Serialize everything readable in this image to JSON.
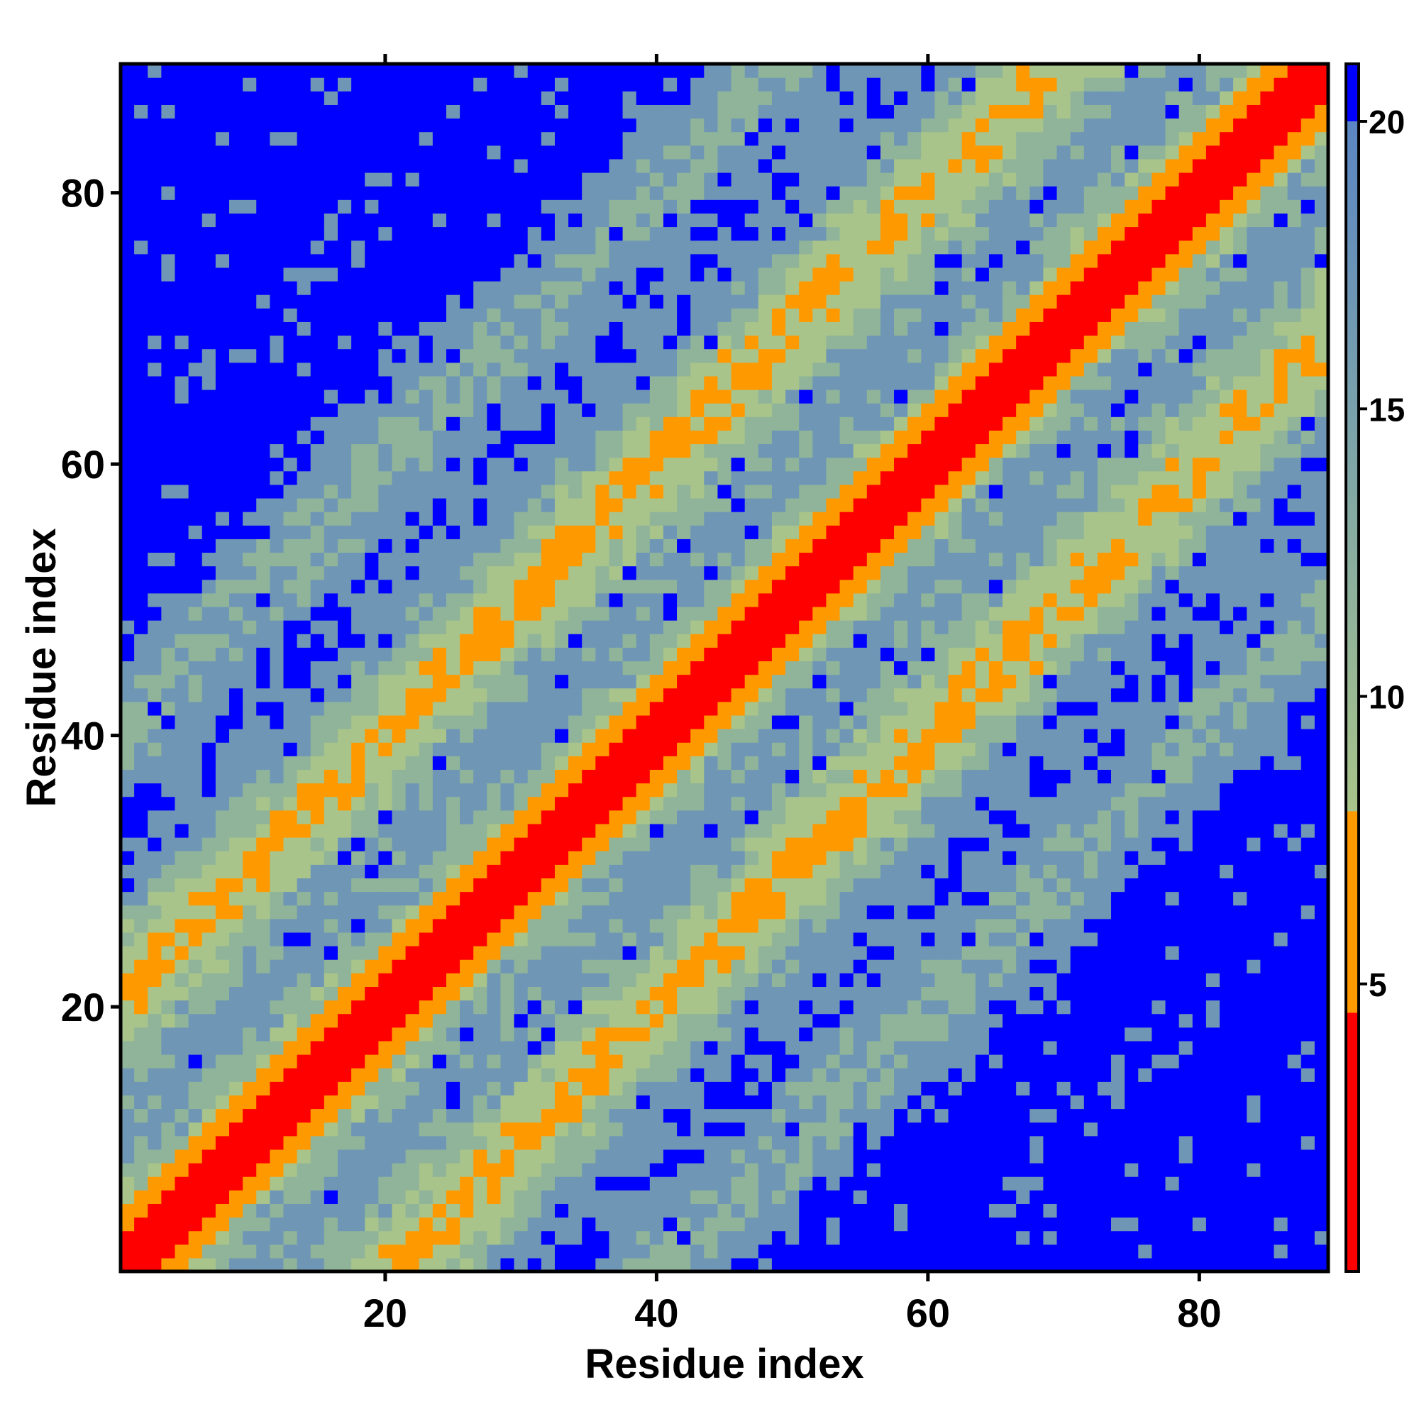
{
  "chart_data": {
    "type": "heatmap",
    "title": "",
    "xlabel": "Residue index",
    "ylabel": "Residue index",
    "n_residues": 89,
    "x_range": [
      1,
      89
    ],
    "y_range": [
      1,
      89
    ],
    "x_ticks": [
      20,
      40,
      60,
      80
    ],
    "y_ticks": [
      20,
      40,
      60,
      80
    ],
    "colorbar": {
      "ticks": [
        5,
        10,
        15,
        20
      ],
      "range": [
        0,
        21
      ],
      "stops": [
        {
          "value": 0,
          "color": "#ff0000"
        },
        {
          "value": 4.5,
          "color": "#ff0000"
        },
        {
          "value": 4.5,
          "color": "#ff9900"
        },
        {
          "value": 8,
          "color": "#ff9900"
        },
        {
          "value": 8,
          "color": "#a8c48a"
        },
        {
          "value": 14,
          "color": "#7fa6a6"
        },
        {
          "value": 20,
          "color": "#5b86c4"
        },
        {
          "value": 20,
          "color": "#0000ff"
        },
        {
          "value": 21,
          "color": "#0000ff"
        }
      ]
    },
    "colors": {
      "diagonal": "#ff0000",
      "near_contact": "#ff9900",
      "mid_light": "#a8c48a",
      "mid": "#8fb49a",
      "mid_dark": "#6f97b5",
      "far": "#0000ff"
    },
    "grid": false,
    "legend": "colorbar-right",
    "structure_note": "",
    "values_note": ""
  }
}
